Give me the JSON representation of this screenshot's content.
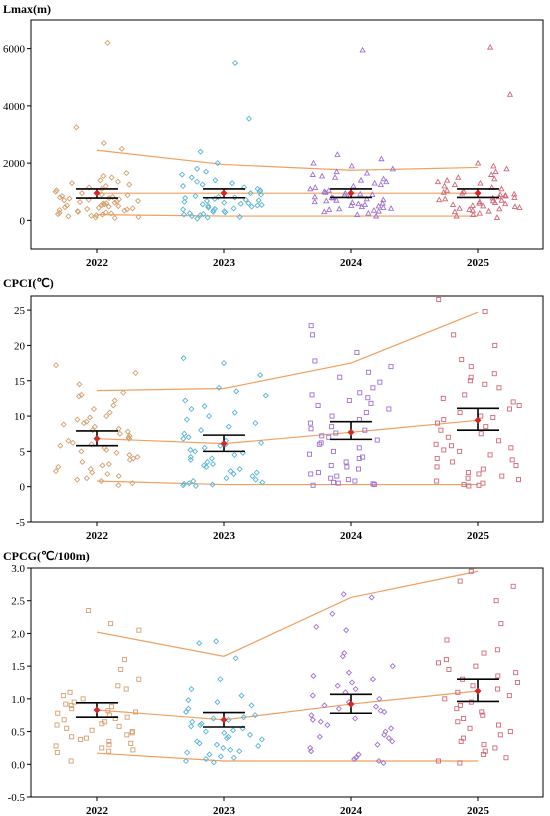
{
  "chart_data": [
    {
      "type": "scatter",
      "title": "Lmax(m)",
      "categories": [
        "2022",
        "2023",
        "2024",
        "2025"
      ],
      "ylim": [
        -1000,
        7000
      ],
      "yticks": [
        0,
        2000,
        4000,
        6000
      ],
      "grid": false,
      "marker_color": "#d4a070",
      "marker_colors": [
        "#d4a070",
        "#5ab4d6",
        "#a070d0",
        "#d06878"
      ],
      "markers": [
        "diamond",
        "diamond",
        "triangle",
        "triangle"
      ],
      "trend_lines": {
        "upper": [
          2450,
          1950,
          1750,
          1850
        ],
        "mean": [
          950,
          950,
          950,
          950
        ],
        "lower": [
          200,
          150,
          150,
          150
        ]
      },
      "mean": [
        950,
        950,
        950,
        950
      ],
      "ci_upper": [
        1100,
        1100,
        1100,
        1100
      ],
      "ci_lower": [
        780,
        790,
        800,
        800
      ],
      "points": [
        [
          6200,
          3250,
          2700,
          2500,
          1650,
          1550,
          1500,
          1400,
          1350,
          1300,
          1250,
          1200,
          1150,
          1100,
          1050,
          1000,
          950,
          900,
          880,
          850,
          820,
          800,
          780,
          760,
          740,
          720,
          700,
          680,
          660,
          640,
          620,
          600,
          580,
          560,
          540,
          520,
          500,
          480,
          460,
          440,
          420,
          400,
          380,
          360,
          340,
          320,
          300,
          280,
          260,
          240,
          220,
          200,
          180,
          160,
          140,
          120,
          100,
          80
        ],
        [
          5500,
          3550,
          2400,
          2000,
          1800,
          1700,
          1600,
          1500,
          1400,
          1350,
          1300,
          1250,
          1200,
          1150,
          1100,
          1050,
          1000,
          950,
          900,
          850,
          820,
          800,
          780,
          750,
          720,
          700,
          680,
          650,
          620,
          600,
          580,
          560,
          540,
          520,
          500,
          480,
          450,
          420,
          400,
          380,
          350,
          320,
          300,
          280,
          250,
          220,
          200,
          180,
          150,
          120,
          100,
          60
        ],
        [
          5950,
          2300,
          2150,
          2000,
          1900,
          1800,
          1700,
          1650,
          1600,
          1550,
          1500,
          1450,
          1400,
          1350,
          1300,
          1250,
          1200,
          1150,
          1100,
          1050,
          1000,
          980,
          950,
          920,
          900,
          880,
          850,
          820,
          800,
          780,
          750,
          720,
          700,
          680,
          650,
          620,
          600,
          580,
          550,
          520,
          500,
          480,
          450,
          420,
          400,
          380,
          350,
          320,
          300,
          250,
          200,
          150
        ],
        [
          6050,
          4400,
          2000,
          1900,
          1800,
          1700,
          1600,
          1500,
          1450,
          1400,
          1350,
          1300,
          1250,
          1200,
          1150,
          1100,
          1050,
          1000,
          980,
          950,
          920,
          900,
          880,
          850,
          820,
          800,
          780,
          750,
          720,
          700,
          680,
          650,
          620,
          600,
          580,
          550,
          520,
          500,
          480,
          450,
          420,
          400,
          380,
          350,
          320,
          300,
          250,
          200,
          150,
          100
        ]
      ]
    },
    {
      "type": "scatter",
      "title": "CPCI(℃)",
      "categories": [
        "2022",
        "2023",
        "2024",
        "2025"
      ],
      "ylim": [
        -5,
        27
      ],
      "yticks": [
        -5,
        0,
        5,
        10,
        15,
        20,
        25
      ],
      "grid": false,
      "marker_colors": [
        "#d4a070",
        "#5ab4d6",
        "#a070d0",
        "#d06878"
      ],
      "markers": [
        "diamond",
        "diamond",
        "square",
        "square"
      ],
      "trend_lines": {
        "upper": [
          13.6,
          13.9,
          17.5,
          24.7
        ],
        "mean": [
          6.8,
          6.1,
          7.7,
          9.4
        ],
        "lower": [
          0.8,
          0.3,
          0.3,
          0.3
        ]
      },
      "mean": [
        6.8,
        6.1,
        7.7,
        9.4
      ],
      "ci_upper": [
        7.9,
        7.3,
        9.2,
        11.1
      ],
      "ci_lower": [
        5.8,
        5.0,
        6.7,
        8.0
      ],
      "points": [
        [
          17.2,
          16.1,
          14.5,
          13.3,
          13.0,
          12.8,
          12.2,
          11.5,
          11.0,
          10.5,
          10.0,
          9.8,
          9.5,
          9.2,
          9.0,
          8.8,
          8.5,
          8.2,
          8.0,
          7.8,
          7.5,
          7.2,
          7.0,
          6.8,
          6.5,
          6.2,
          6.0,
          5.8,
          5.5,
          5.2,
          5.0,
          4.8,
          4.5,
          4.2,
          4.0,
          3.8,
          3.5,
          3.2,
          3.0,
          2.8,
          2.5,
          2.2,
          2.0,
          1.8,
          1.5,
          1.2,
          1.0,
          0.8,
          0.5,
          0.2
        ],
        [
          18.2,
          17.5,
          15.8,
          14.0,
          13.5,
          12.9,
          12.2,
          11.4,
          11.0,
          10.5,
          10.0,
          9.5,
          9.0,
          8.5,
          8.0,
          7.5,
          7.0,
          6.8,
          6.5,
          6.2,
          6.0,
          5.8,
          5.5,
          5.2,
          5.0,
          4.8,
          4.5,
          4.2,
          4.0,
          3.8,
          3.5,
          3.2,
          3.0,
          2.8,
          2.5,
          2.2,
          2.0,
          1.8,
          1.5,
          1.2,
          1.0,
          0.8,
          0.6,
          0.5,
          0.4,
          0.3,
          0.2,
          0.1
        ],
        [
          22.8,
          21.5,
          19.0,
          17.8,
          17.0,
          16.2,
          15.5,
          14.8,
          14.0,
          13.3,
          13.0,
          12.6,
          12.2,
          11.8,
          11.5,
          11.0,
          10.5,
          10.0,
          9.5,
          9.0,
          8.5,
          8.2,
          8.0,
          7.6,
          7.2,
          7.0,
          6.6,
          6.2,
          6.0,
          5.5,
          5.0,
          4.6,
          4.2,
          4.0,
          3.5,
          3.0,
          2.8,
          2.5,
          2.0,
          1.8,
          1.5,
          1.2,
          1.0,
          0.8,
          0.6,
          0.5,
          0.4,
          0.3,
          0.2
        ],
        [
          26.5,
          24.8,
          21.5,
          20.0,
          18.0,
          17.0,
          16.0,
          15.5,
          15.0,
          14.5,
          14.0,
          13.0,
          12.5,
          12.0,
          11.5,
          11.0,
          10.5,
          10.0,
          9.8,
          9.5,
          9.0,
          8.5,
          8.0,
          7.5,
          7.0,
          6.5,
          6.0,
          5.8,
          5.5,
          5.2,
          5.0,
          4.5,
          4.0,
          3.8,
          3.5,
          3.0,
          2.8,
          2.5,
          2.0,
          1.8,
          1.5,
          1.2,
          1.0,
          0.8,
          0.5,
          0.3,
          0.2,
          0.1
        ]
      ]
    },
    {
      "type": "scatter",
      "title": "CPCG(℃/100m)",
      "categories": [
        "2022",
        "2023",
        "2024",
        "2025"
      ],
      "ylim": [
        -0.5,
        3.0
      ],
      "yticks": [
        -0.5,
        0.0,
        0.5,
        1.0,
        1.5,
        2.0,
        2.5,
        3.0
      ],
      "grid": false,
      "marker_colors": [
        "#d4a070",
        "#5ab4d6",
        "#a070d0",
        "#d06878"
      ],
      "markers": [
        "square",
        "diamond",
        "diamond",
        "square"
      ],
      "trend_lines": {
        "upper": [
          2.02,
          1.65,
          2.55,
          2.95
        ],
        "mean": [
          0.83,
          0.68,
          0.92,
          1.12
        ],
        "lower": [
          0.17,
          0.05,
          0.05,
          0.05
        ]
      },
      "mean": [
        0.83,
        0.68,
        0.92,
        1.12
      ],
      "ci_upper": [
        0.94,
        0.79,
        1.07,
        1.3
      ],
      "ci_lower": [
        0.72,
        0.57,
        0.78,
        0.96
      ],
      "points": [
        [
          2.35,
          2.15,
          2.05,
          1.6,
          1.45,
          1.3,
          1.2,
          1.15,
          1.1,
          1.05,
          1.0,
          0.95,
          0.92,
          0.9,
          0.88,
          0.85,
          0.82,
          0.8,
          0.78,
          0.75,
          0.72,
          0.7,
          0.68,
          0.65,
          0.62,
          0.6,
          0.58,
          0.55,
          0.52,
          0.5,
          0.48,
          0.45,
          0.42,
          0.4,
          0.38,
          0.35,
          0.32,
          0.3,
          0.28,
          0.25,
          0.22,
          0.2,
          0.18,
          0.05
        ],
        [
          1.88,
          1.85,
          1.62,
          1.3,
          1.15,
          1.05,
          0.98,
          0.95,
          0.9,
          0.85,
          0.8,
          0.75,
          0.72,
          0.7,
          0.68,
          0.65,
          0.62,
          0.6,
          0.58,
          0.55,
          0.52,
          0.5,
          0.48,
          0.45,
          0.42,
          0.4,
          0.38,
          0.35,
          0.32,
          0.3,
          0.28,
          0.25,
          0.22,
          0.2,
          0.18,
          0.15,
          0.12,
          0.1,
          0.08,
          0.05,
          0.03
        ],
        [
          2.6,
          2.55,
          2.3,
          2.1,
          2.05,
          1.7,
          1.65,
          1.5,
          1.4,
          1.35,
          1.3,
          1.25,
          1.2,
          1.15,
          1.1,
          1.05,
          1.0,
          0.95,
          0.9,
          0.88,
          0.85,
          0.82,
          0.8,
          0.75,
          0.7,
          0.68,
          0.65,
          0.6,
          0.55,
          0.5,
          0.45,
          0.42,
          0.4,
          0.35,
          0.3,
          0.25,
          0.2,
          0.15,
          0.1,
          0.08,
          0.05,
          0.02
        ],
        [
          2.95,
          2.8,
          2.72,
          2.5,
          2.15,
          1.9,
          1.75,
          1.7,
          1.6,
          1.55,
          1.5,
          1.45,
          1.4,
          1.35,
          1.3,
          1.25,
          1.2,
          1.15,
          1.1,
          1.05,
          1.0,
          0.95,
          0.9,
          0.85,
          0.8,
          0.75,
          0.7,
          0.65,
          0.6,
          0.55,
          0.5,
          0.45,
          0.4,
          0.35,
          0.3,
          0.25,
          0.2,
          0.15,
          0.1,
          0.05,
          0.02
        ]
      ]
    }
  ]
}
